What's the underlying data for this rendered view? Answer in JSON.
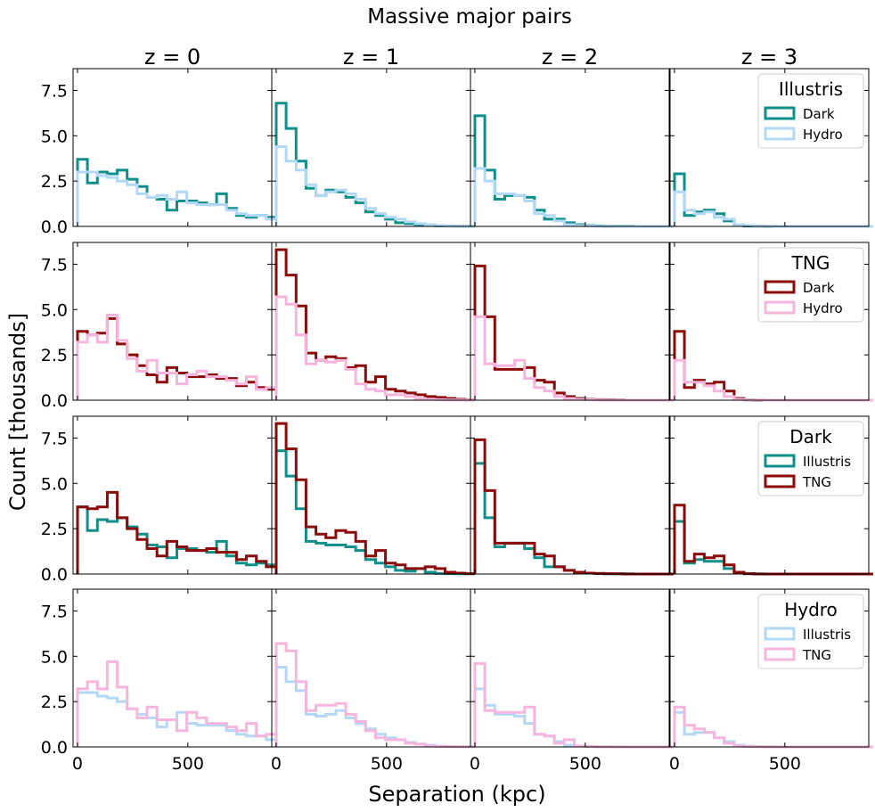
{
  "figure": {
    "title": "Massive major pairs",
    "xlabel": "Separation (kpc)",
    "ylabel": "Count [thousands]"
  },
  "colors": {
    "illustris_dark": "#0f8f8a",
    "illustris_hydro": "#b3d8f5",
    "tng_dark": "#8b0a0a",
    "tng_hydro": "#f5b5dc"
  },
  "chart_data": {
    "type": "histogram-grid",
    "columns": [
      "z = 0",
      "z = 1",
      "z = 2",
      "z = 3"
    ],
    "xlim": [
      -20,
      880
    ],
    "ylim": [
      0,
      8.7
    ],
    "xticks": [
      0,
      500
    ],
    "yticks": [
      0.0,
      2.5,
      5.0,
      7.5
    ],
    "ytick_labels": [
      "0.0",
      "2.5",
      "5.0",
      "7.5"
    ],
    "bin_width": 45,
    "rows": [
      {
        "legend_title": "Illustris",
        "series": [
          {
            "name": "Dark",
            "color_key": "illustris_dark",
            "line_width": 3,
            "panels": [
              [
                3.7,
                2.4,
                3.0,
                2.9,
                3.1,
                2.6,
                2.2,
                1.6,
                1.5,
                0.9,
                1.4,
                1.4,
                1.3,
                1.2,
                1.8,
                1.0,
                0.6,
                0.5,
                0.6,
                0.5
              ],
              [
                6.8,
                5.4,
                3.6,
                2.1,
                1.7,
                2.0,
                1.9,
                1.6,
                1.3,
                0.8,
                0.6,
                0.4,
                0.2,
                0.15,
                0.1,
                0.05,
                0.03,
                0.02,
                0.01,
                0.01
              ],
              [
                6.1,
                3.1,
                1.5,
                1.7,
                1.7,
                1.6,
                0.9,
                0.4,
                0.4,
                0.2,
                0.1,
                0.05,
                0.03,
                0.01,
                0.01,
                0.01,
                0.0,
                0.0,
                0.0,
                0.0
              ],
              [
                2.9,
                0.6,
                0.8,
                0.9,
                0.7,
                0.3,
                0.05,
                0.02,
                0.01,
                0.0,
                0.0,
                0.0,
                0.0,
                0.0,
                0.0,
                0.0,
                0.0,
                0.0,
                0.0,
                0.0
              ]
            ]
          },
          {
            "name": "Hydro",
            "color_key": "illustris_hydro",
            "line_width": 3,
            "panels": [
              [
                3.0,
                3.0,
                2.8,
                2.7,
                2.5,
                2.3,
                1.8,
                1.6,
                1.7,
                1.5,
                1.9,
                1.3,
                1.2,
                1.2,
                1.2,
                0.9,
                0.7,
                0.6,
                0.6,
                0.4
              ],
              [
                4.4,
                3.6,
                3.1,
                2.3,
                1.7,
                1.9,
                2.0,
                1.8,
                1.5,
                1.0,
                0.7,
                0.5,
                0.4,
                0.25,
                0.15,
                0.1,
                0.05,
                0.02,
                0.01,
                0.01
              ],
              [
                3.2,
                2.5,
                1.8,
                1.8,
                1.7,
                1.4,
                0.7,
                0.6,
                0.3,
                0.1,
                0.05,
                0.03,
                0.01,
                0.01,
                0.0,
                0.0,
                0.0,
                0.0,
                0.0,
                0.0
              ],
              [
                1.9,
                0.9,
                0.7,
                0.8,
                0.5,
                0.4,
                0.1,
                0.05,
                0.02,
                0.01,
                0.0,
                0.0,
                0.0,
                0.0,
                0.0,
                0.0,
                0.0,
                0.0,
                0.0,
                0.0
              ]
            ]
          }
        ]
      },
      {
        "legend_title": "TNG",
        "series": [
          {
            "name": "Dark",
            "color_key": "tng_dark",
            "line_width": 3,
            "panels": [
              [
                3.8,
                3.6,
                3.7,
                4.5,
                3.1,
                2.5,
                1.9,
                1.4,
                1.0,
                1.8,
                1.5,
                1.3,
                1.3,
                1.4,
                1.2,
                1.2,
                0.8,
                1.0,
                0.7,
                0.6
              ],
              [
                8.3,
                6.9,
                5.2,
                2.6,
                2.2,
                2.4,
                2.3,
                1.8,
                1.9,
                1.0,
                1.3,
                0.6,
                0.5,
                0.4,
                0.3,
                0.2,
                0.15,
                0.1,
                0.05,
                0.02
              ],
              [
                7.4,
                4.6,
                1.7,
                1.7,
                1.7,
                1.8,
                1.1,
                1.0,
                0.4,
                0.2,
                0.1,
                0.05,
                0.03,
                0.02,
                0.01,
                0.0,
                0.0,
                0.0,
                0.0,
                0.0
              ],
              [
                3.8,
                0.7,
                1.1,
                0.9,
                1.0,
                0.5,
                0.1,
                0.02,
                0.0,
                0.0,
                0.0,
                0.0,
                0.0,
                0.0,
                0.0,
                0.0,
                0.0,
                0.0,
                0.0,
                0.0
              ]
            ]
          },
          {
            "name": "Hydro",
            "color_key": "tng_hydro",
            "line_width": 3,
            "panels": [
              [
                3.2,
                3.6,
                3.2,
                4.7,
                3.3,
                2.3,
                1.6,
                2.2,
                1.5,
                1.5,
                0.9,
                1.4,
                1.6,
                1.3,
                1.3,
                1.1,
                0.9,
                1.3,
                0.6,
                0.7
              ],
              [
                5.7,
                5.3,
                3.6,
                2.0,
                2.2,
                2.1,
                2.2,
                1.7,
                0.9,
                0.6,
                0.5,
                0.3,
                0.3,
                0.2,
                0.1,
                0.05,
                0.03,
                0.02,
                0.01,
                0.01
              ],
              [
                4.6,
                2.0,
                1.9,
                1.9,
                2.2,
                1.2,
                0.7,
                0.5,
                0.2,
                0.1,
                0.05,
                0.03,
                0.01,
                0.0,
                0.0,
                0.0,
                0.0,
                0.0,
                0.0,
                0.0
              ],
              [
                2.2,
                1.0,
                1.0,
                0.8,
                0.5,
                0.2,
                0.05,
                0.02,
                0.01,
                0.0,
                0.0,
                0.0,
                0.0,
                0.0,
                0.0,
                0.0,
                0.0,
                0.0,
                0.0,
                0.0
              ]
            ]
          }
        ]
      },
      {
        "legend_title": "Dark",
        "series": [
          {
            "name": "Illustris",
            "color_key": "illustris_dark",
            "line_width": 3,
            "panels": [
              [
                3.7,
                2.4,
                3.0,
                2.9,
                3.1,
                2.6,
                2.2,
                1.6,
                1.5,
                0.9,
                1.4,
                1.4,
                1.3,
                1.2,
                1.8,
                1.0,
                0.6,
                0.5,
                0.6,
                0.5
              ],
              [
                6.8,
                5.4,
                3.6,
                1.8,
                1.7,
                1.6,
                1.6,
                1.5,
                1.3,
                0.8,
                0.6,
                0.4,
                0.2,
                0.15,
                0.3,
                0.1,
                0.03,
                0.02,
                0.01,
                0.01
              ],
              [
                6.1,
                3.1,
                1.5,
                1.7,
                1.7,
                1.4,
                0.9,
                0.4,
                0.4,
                0.2,
                0.1,
                0.05,
                0.03,
                0.01,
                0.01,
                0.01,
                0.0,
                0.0,
                0.0,
                0.0
              ],
              [
                2.9,
                0.6,
                0.8,
                0.7,
                0.7,
                0.3,
                0.05,
                0.02,
                0.01,
                0.0,
                0.0,
                0.0,
                0.0,
                0.0,
                0.0,
                0.0,
                0.0,
                0.0,
                0.0,
                0.0
              ]
            ]
          },
          {
            "name": "TNG",
            "color_key": "tng_dark",
            "line_width": 3,
            "panels": [
              [
                3.7,
                3.6,
                3.7,
                4.5,
                3.1,
                2.5,
                1.9,
                1.4,
                1.0,
                1.8,
                1.5,
                1.3,
                1.3,
                1.4,
                1.2,
                1.2,
                0.8,
                1.0,
                0.7,
                0.4
              ],
              [
                8.3,
                6.9,
                5.2,
                2.6,
                2.2,
                2.0,
                2.4,
                2.3,
                1.8,
                1.0,
                1.3,
                0.6,
                0.5,
                0.3,
                0.3,
                0.4,
                0.3,
                0.1,
                0.05,
                0.02
              ],
              [
                7.4,
                4.6,
                1.7,
                1.7,
                1.7,
                1.7,
                1.1,
                1.0,
                0.4,
                0.2,
                0.1,
                0.05,
                0.03,
                0.02,
                0.01,
                0.0,
                0.0,
                0.0,
                0.0,
                0.0
              ],
              [
                3.8,
                0.7,
                1.1,
                0.9,
                1.0,
                0.5,
                0.1,
                0.02,
                0.0,
                0.0,
                0.0,
                0.0,
                0.0,
                0.0,
                0.0,
                0.0,
                0.0,
                0.0,
                0.0,
                0.0
              ]
            ]
          }
        ]
      },
      {
        "legend_title": "Hydro",
        "series": [
          {
            "name": "Illustris",
            "color_key": "illustris_hydro",
            "line_width": 3,
            "panels": [
              [
                3.0,
                3.0,
                2.8,
                2.7,
                2.5,
                2.1,
                1.8,
                1.6,
                1.1,
                1.5,
                1.9,
                1.3,
                1.2,
                1.2,
                1.2,
                0.9,
                0.7,
                0.6,
                0.6,
                0.4
              ],
              [
                4.4,
                3.6,
                3.1,
                1.8,
                1.7,
                1.8,
                2.0,
                1.6,
                1.3,
                1.0,
                0.7,
                0.5,
                0.4,
                0.25,
                0.15,
                0.1,
                0.05,
                0.02,
                0.01,
                0.01
              ],
              [
                3.2,
                2.3,
                1.8,
                1.8,
                1.7,
                1.3,
                0.7,
                0.6,
                0.3,
                0.1,
                0.05,
                0.03,
                0.01,
                0.01,
                0.0,
                0.0,
                0.0,
                0.0,
                0.0,
                0.0
              ],
              [
                1.9,
                0.7,
                0.8,
                0.8,
                0.5,
                0.3,
                0.1,
                0.05,
                0.02,
                0.01,
                0.0,
                0.0,
                0.0,
                0.0,
                0.0,
                0.0,
                0.0,
                0.0,
                0.0,
                0.0
              ]
            ]
          },
          {
            "name": "TNG",
            "color_key": "tng_hydro",
            "line_width": 3,
            "panels": [
              [
                3.2,
                3.6,
                3.2,
                4.7,
                3.3,
                2.1,
                1.6,
                2.2,
                1.5,
                1.5,
                0.9,
                1.9,
                1.6,
                1.3,
                1.3,
                1.1,
                0.9,
                1.3,
                0.6,
                0.7
              ],
              [
                5.7,
                5.3,
                3.6,
                2.0,
                2.3,
                2.3,
                2.4,
                1.8,
                1.4,
                0.9,
                0.5,
                0.4,
                0.4,
                0.2,
                0.15,
                0.05,
                0.03,
                0.02,
                0.01,
                0.01
              ],
              [
                4.6,
                2.0,
                1.9,
                1.9,
                1.9,
                2.2,
                0.7,
                0.6,
                0.2,
                0.4,
                0.05,
                0.03,
                0.01,
                0.0,
                0.0,
                0.0,
                0.0,
                0.0,
                0.0,
                0.0
              ],
              [
                2.2,
                1.2,
                1.0,
                0.8,
                0.5,
                0.2,
                0.05,
                0.02,
                0.01,
                0.0,
                0.0,
                0.0,
                0.0,
                0.0,
                0.0,
                0.0,
                0.0,
                0.0,
                0.0,
                0.0
              ]
            ]
          }
        ]
      }
    ]
  }
}
